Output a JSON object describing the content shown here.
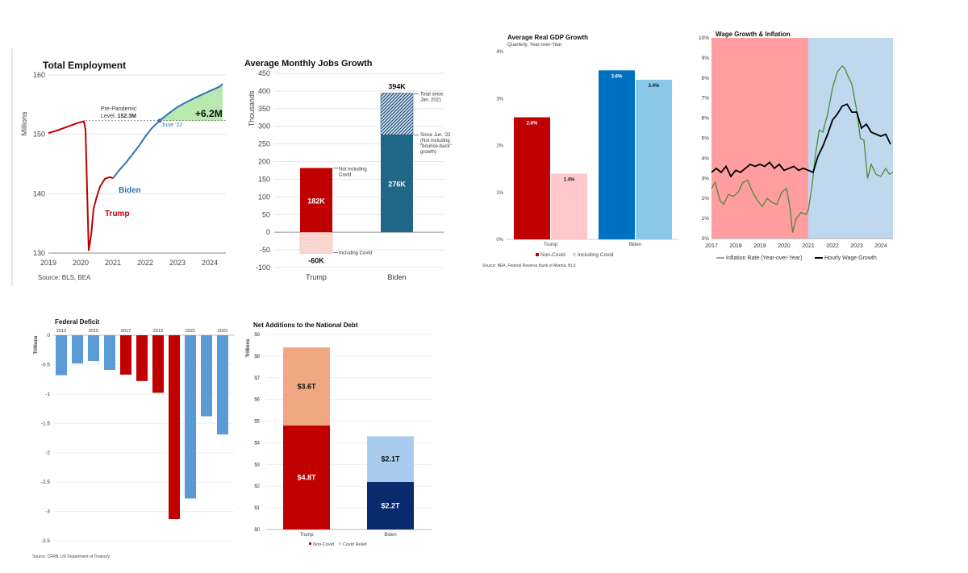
{
  "colors": {
    "trump_red": "#c00000",
    "trump_light": "#ffc9cc",
    "biden_blue": "#0070c0",
    "biden_light": "#8ac8ea",
    "emp_blue": "#2e75b6",
    "emp_green": "#b9e8b0",
    "jobs_teal": "#1f6687",
    "deficit_blue": "#5b9bd5",
    "debt_peach": "#f0a882",
    "debt_navy": "#0a2a6e",
    "debt_lightblue": "#a9cbee",
    "wage_red_bg": "#ff9da0",
    "wage_blue_bg": "#bfd8ee",
    "inflation_green": "#4e8a36"
  },
  "chart_data": [
    {
      "id": "total-employment",
      "type": "line",
      "title": "Total Employment",
      "ylabel": "Millions",
      "ylim": [
        130,
        160
      ],
      "yticks": [
        "130",
        "140",
        "150",
        "160"
      ],
      "xlim": [
        2019,
        2024.5
      ],
      "xticks": [
        "2019",
        "2020",
        "2021",
        "2022",
        "2023",
        "2024"
      ],
      "series": [
        {
          "name": "Trump",
          "x": [
            2019,
            2019.3,
            2019.6,
            2019.9,
            2020.1,
            2020.15,
            2020.25,
            2020.33,
            2020.4,
            2020.5,
            2020.6,
            2020.75,
            2020.9,
            2021.0
          ],
          "y": [
            150.2,
            150.7,
            151.3,
            151.9,
            152.2,
            150.8,
            130.4,
            133.3,
            137.5,
            139.5,
            141.2,
            142.5,
            142.8,
            142.6
          ]
        },
        {
          "name": "Biden",
          "x": [
            2021.0,
            2021.2,
            2021.4,
            2021.6,
            2021.8,
            2022.0,
            2022.2,
            2022.45,
            2022.7,
            2023.0,
            2023.3,
            2023.6,
            2024.0,
            2024.3,
            2024.4
          ],
          "y": [
            142.6,
            144.0,
            145.2,
            146.6,
            148.0,
            149.6,
            151.0,
            152.3,
            153.4,
            154.6,
            155.5,
            156.3,
            157.3,
            158.0,
            158.5
          ]
        }
      ],
      "prepandemic_label": "Pre-Pandemic",
      "prepandemic_level_prefix": "Level:",
      "prepandemic_level_value": "152.3M",
      "june22_label": "June '22",
      "gain_label": "+6.2M",
      "trump_label": "Trump",
      "biden_label": "Biden",
      "source": "Source: BLS, BEA"
    },
    {
      "id": "monthly-jobs",
      "type": "bar",
      "title": "Average Monthly Jobs Growth",
      "ylabel": "Thousands",
      "ylim": [
        -100,
        450
      ],
      "yticks": [
        "-100",
        "-50",
        "0",
        "50",
        "100",
        "150",
        "200",
        "250",
        "300",
        "350",
        "400",
        "450"
      ],
      "categories": [
        "Trump",
        "Biden"
      ],
      "trump_non_covid": 182,
      "trump_with_covid": -60,
      "biden_since_june22": 276,
      "biden_total": 394,
      "labels": {
        "trump_value": "182K",
        "trump_covid_value": "-60K",
        "biden_value": "276K",
        "biden_total_value": "394K",
        "not_including_covid": [
          "Not including",
          "Covid"
        ],
        "including_covid": "Including Covid",
        "total_since": [
          "Total since",
          "Jan. 2021"
        ],
        "since_june": [
          "Since Jun. '22",
          "(Not including",
          "\"bounce-back\"",
          "growth)"
        ]
      }
    },
    {
      "id": "gdp-growth",
      "type": "bar",
      "title": "Average Real GDP Growth",
      "subtitle": "Quarterly, Year-over-Year",
      "ylim": [
        0,
        4
      ],
      "yticks": [
        "0%",
        "1%",
        "2%",
        "3%",
        "4%"
      ],
      "categories": [
        "Trump",
        "Biden"
      ],
      "series": [
        {
          "name": "Non-Covid",
          "values": [
            2.6,
            3.6
          ]
        },
        {
          "name": "Including Covid",
          "values": [
            1.4,
            3.4
          ]
        }
      ],
      "value_labels": [
        "2.6%",
        "1.4%",
        "3.6%",
        "3.4%"
      ],
      "legend": [
        "Non-Covid",
        "Including Covid"
      ],
      "source": "Source: BEA, Federal Reserve Bank of Atlanta, BLS"
    },
    {
      "id": "wage-inflation",
      "type": "line",
      "title": "Wage Growth & Inflation",
      "ylim": [
        0,
        10
      ],
      "yticks": [
        "0%",
        "1%",
        "2%",
        "3%",
        "4%",
        "5%",
        "6%",
        "7%",
        "8%",
        "9%",
        "10%"
      ],
      "xlim": [
        2017,
        2024.5
      ],
      "xticks": [
        "2017",
        "2018",
        "2019",
        "2020",
        "2021",
        "2022",
        "2023",
        "2024"
      ],
      "trump_period": [
        2017,
        2021
      ],
      "biden_period": [
        2021,
        2024.5
      ],
      "series": [
        {
          "name": "Inflation Rate (Year-over-Year)",
          "x": [
            2017,
            2017.15,
            2017.35,
            2017.5,
            2017.7,
            2017.9,
            2018.1,
            2018.3,
            2018.5,
            2018.7,
            2018.9,
            2019.1,
            2019.3,
            2019.5,
            2019.7,
            2019.9,
            2020.1,
            2020.25,
            2020.35,
            2020.5,
            2020.7,
            2020.9,
            2021.0,
            2021.15,
            2021.3,
            2021.45,
            2021.6,
            2021.8,
            2022.0,
            2022.2,
            2022.4,
            2022.5,
            2022.6,
            2022.8,
            2023.0,
            2023.15,
            2023.3,
            2023.45,
            2023.6,
            2023.8,
            2024.0,
            2024.2,
            2024.35,
            2024.5
          ],
          "y": [
            2.5,
            2.8,
            1.9,
            1.7,
            2.2,
            2.1,
            2.3,
            2.8,
            2.9,
            2.3,
            1.9,
            1.6,
            2.0,
            1.8,
            1.7,
            2.3,
            2.5,
            1.5,
            0.3,
            1.0,
            1.3,
            1.2,
            1.4,
            2.6,
            4.2,
            5.4,
            5.3,
            6.2,
            7.5,
            8.3,
            8.6,
            8.5,
            8.2,
            7.7,
            6.4,
            5.0,
            4.9,
            3.0,
            3.7,
            3.2,
            3.1,
            3.5,
            3.2,
            3.3
          ]
        },
        {
          "name": "Hourly Wage Growth",
          "x": [
            2017,
            2017.2,
            2017.4,
            2017.6,
            2017.8,
            2018.0,
            2018.2,
            2018.4,
            2018.6,
            2018.8,
            2019.0,
            2019.2,
            2019.4,
            2019.6,
            2019.8,
            2020.0,
            2020.2,
            2020.4,
            2020.6,
            2020.8,
            2021.0,
            2021.2,
            2021.4,
            2021.6,
            2021.8,
            2022.0,
            2022.2,
            2022.4,
            2022.6,
            2022.8,
            2023.0,
            2023.2,
            2023.4,
            2023.6,
            2023.8,
            2024.0,
            2024.2,
            2024.4
          ],
          "y": [
            3.3,
            3.5,
            3.3,
            3.6,
            3.1,
            3.4,
            3.3,
            3.5,
            3.7,
            3.6,
            3.7,
            3.6,
            3.8,
            3.5,
            3.7,
            3.4,
            3.5,
            3.6,
            3.4,
            3.5,
            3.4,
            3.3,
            4.1,
            4.6,
            5.2,
            5.9,
            6.2,
            6.6,
            6.7,
            6.3,
            6.3,
            5.5,
            5.7,
            5.3,
            5.2,
            5.1,
            5.2,
            4.7
          ]
        }
      ],
      "legend": [
        "Inflation Rate (Year-over-Year)",
        "Hourly Wage Growth"
      ]
    },
    {
      "id": "federal-deficit",
      "type": "bar",
      "title": "Federal Deficit",
      "ylabel": "Trillions",
      "ylim": [
        -3.5,
        0
      ],
      "yticks": [
        "0",
        "-0.5",
        "-1",
        "-1.5",
        "-2",
        "-2.5",
        "-3",
        "-3.5"
      ],
      "xticks": [
        "2013",
        "2015",
        "2017",
        "2019",
        "2021",
        "2023"
      ],
      "categories": [
        "2013",
        "2014",
        "2015",
        "2016",
        "2017",
        "2018",
        "2019",
        "2020",
        "2021",
        "2022",
        "2023"
      ],
      "values": [
        -0.68,
        -0.48,
        -0.44,
        -0.59,
        -0.67,
        -0.78,
        -0.98,
        -3.13,
        -2.78,
        -1.38,
        -1.69
      ],
      "bar_colors": [
        "blue",
        "blue",
        "blue",
        "blue",
        "red",
        "red",
        "red",
        "red",
        "blue",
        "blue",
        "blue"
      ],
      "source": "Source: CFRB, US Department of Treasury"
    },
    {
      "id": "national-debt",
      "type": "bar",
      "title": "Net Additions to the National Debt",
      "ylabel": "Trillions",
      "ylim": [
        0,
        9
      ],
      "yticks": [
        "$0",
        "$1",
        "$2",
        "$3",
        "$4",
        "$5",
        "$6",
        "$7",
        "$8",
        "$9"
      ],
      "categories": [
        "Trump",
        "Biden"
      ],
      "series": [
        {
          "name": "Non-Covid",
          "values": [
            4.8,
            2.2
          ]
        },
        {
          "name": "Covid Relief",
          "values": [
            3.6,
            2.1
          ]
        }
      ],
      "value_labels": {
        "trump_non_covid": "$4.8T",
        "trump_covid": "$3.6T",
        "biden_non_covid": "$2.2T",
        "biden_covid": "$2.1T"
      },
      "legend": [
        "Non-Covid",
        "Covid Relief"
      ]
    }
  ]
}
